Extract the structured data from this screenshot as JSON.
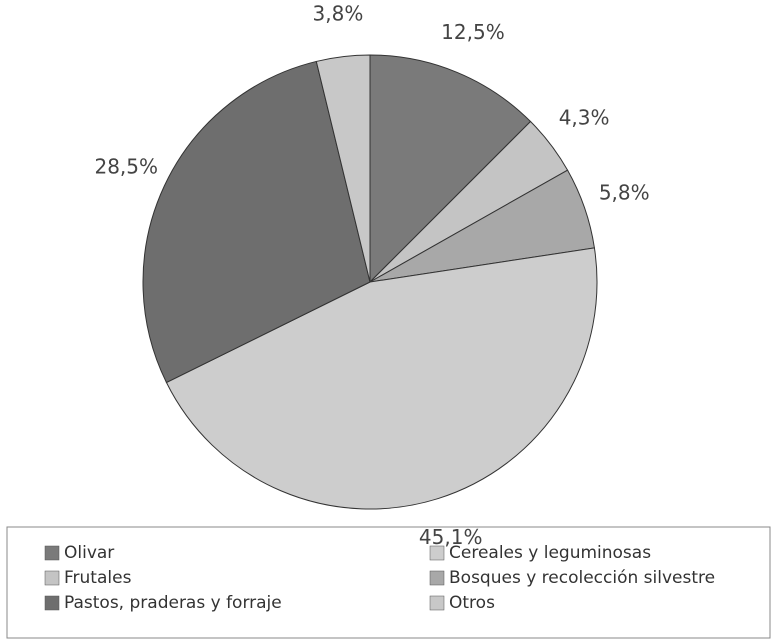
{
  "chart_data": {
    "type": "pie",
    "categories": [
      "Olivar",
      "Frutales",
      "Bosques y recolección silvestre",
      "Cereales y leguminosas",
      "Pastos, praderas y forraje",
      "Otros"
    ],
    "values": [
      12.5,
      4.3,
      5.8,
      45.1,
      28.5,
      3.8
    ],
    "value_labels": [
      "12,5%",
      "4,3%",
      "5,8%",
      "45,1%",
      "28,5%",
      "3,8%"
    ],
    "colors": [
      "#7a7a7a",
      "#c4c4c4",
      "#a8a8a8",
      "#cdcdcd",
      "#6e6e6e",
      "#c8c8c8"
    ],
    "legend": "bottom"
  }
}
